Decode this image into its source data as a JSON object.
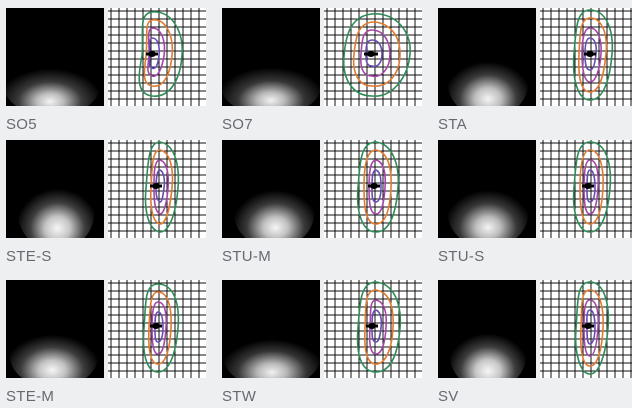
{
  "items": [
    {
      "name": "SO5",
      "distribution": "so5"
    },
    {
      "name": "SO7",
      "distribution": "so7"
    },
    {
      "name": "STA",
      "distribution": "sta"
    },
    {
      "name": "STE-S",
      "distribution": "ste-s"
    },
    {
      "name": "STU-M",
      "distribution": "stu-m"
    },
    {
      "name": "STU-S",
      "distribution": "stu-s"
    },
    {
      "name": "STE-M",
      "distribution": "ste-m"
    },
    {
      "name": "STW",
      "distribution": "stw"
    },
    {
      "name": "SV",
      "distribution": "sv"
    }
  ],
  "colors": {
    "page_background": "#eeeff1",
    "label_text": "#666a70",
    "contour_outer": "#2e8b57",
    "contour_second": "#e07a2e",
    "contour_third": "#a546a8",
    "contour_inner": "#6a4bb5",
    "fixture_marker": "#000000"
  }
}
